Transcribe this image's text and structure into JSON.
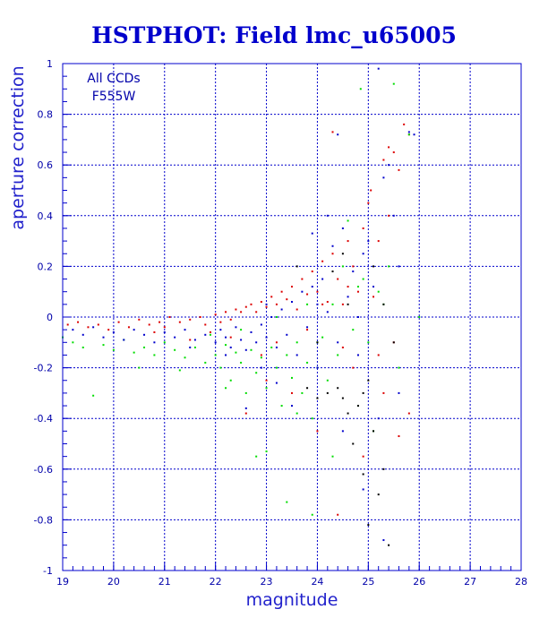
{
  "chart_data": {
    "type": "scatter",
    "title": "HSTPHOT: Field lmc_u65005",
    "xlabel": "magnitude",
    "ylabel": "aperture correction",
    "xlim": [
      19,
      28
    ],
    "ylim": [
      -1,
      1
    ],
    "xticks": [
      19,
      20,
      21,
      22,
      23,
      24,
      25,
      26,
      27,
      28
    ],
    "yticks": [
      -1,
      -0.8,
      -0.6,
      -0.4,
      -0.2,
      0,
      0.2,
      0.4,
      0.6,
      0.8,
      1
    ],
    "xtick_labels": [
      "19",
      "20",
      "21",
      "22",
      "23",
      "24",
      "25",
      "26",
      "27",
      "28"
    ],
    "ytick_labels": [
      "-1",
      "-0.8",
      "-0.6",
      "-0.4",
      "-0.2",
      "0",
      "0.2",
      "0.4",
      "0.6",
      "0.8",
      "1"
    ],
    "grid": true,
    "annotations": [
      "All CCDs",
      "F555W"
    ],
    "colors": {
      "axes": "#0000cc",
      "grid": "#0000cc",
      "red_points": "#dd0000",
      "green_points": "#00dd00",
      "blue_points": "#0000cc",
      "black_points": "#000000"
    },
    "series": [
      {
        "color": "#dd0000",
        "points": [
          [
            19.1,
            -0.03
          ],
          [
            19.3,
            -0.02
          ],
          [
            19.5,
            -0.04
          ],
          [
            19.7,
            -0.03
          ],
          [
            19.9,
            -0.05
          ],
          [
            20.1,
            -0.02
          ],
          [
            20.3,
            -0.04
          ],
          [
            20.5,
            -0.01
          ],
          [
            20.7,
            -0.03
          ],
          [
            20.9,
            -0.02
          ],
          [
            21.1,
            0.0
          ],
          [
            21.3,
            -0.02
          ],
          [
            21.5,
            -0.01
          ],
          [
            21.7,
            0.0
          ],
          [
            21.8,
            -0.03
          ],
          [
            21.9,
            -0.06
          ],
          [
            22.0,
            0.01
          ],
          [
            22.1,
            -0.02
          ],
          [
            22.2,
            0.02
          ],
          [
            22.3,
            -0.01
          ],
          [
            22.4,
            0.03
          ],
          [
            22.5,
            0.02
          ],
          [
            22.6,
            0.04
          ],
          [
            22.7,
            0.05
          ],
          [
            22.8,
            0.02
          ],
          [
            22.9,
            0.06
          ],
          [
            23.0,
            0.04
          ],
          [
            23.1,
            0.08
          ],
          [
            23.2,
            0.05
          ],
          [
            23.3,
            0.1
          ],
          [
            23.4,
            0.07
          ],
          [
            23.5,
            0.12
          ],
          [
            23.6,
            0.03
          ],
          [
            23.7,
            0.15
          ],
          [
            23.8,
            0.09
          ],
          [
            23.9,
            0.18
          ],
          [
            24.0,
            0.1
          ],
          [
            24.1,
            0.22
          ],
          [
            24.2,
            0.06
          ],
          [
            24.3,
            0.25
          ],
          [
            24.4,
            0.15
          ],
          [
            24.5,
            0.05
          ],
          [
            24.6,
            0.3
          ],
          [
            24.7,
            0.2
          ],
          [
            24.8,
            0.1
          ],
          [
            24.9,
            0.35
          ],
          [
            25.0,
            0.45
          ],
          [
            25.05,
            0.5
          ],
          [
            25.1,
            0.08
          ],
          [
            25.2,
            0.3
          ],
          [
            25.3,
            0.62
          ],
          [
            25.4,
            0.4
          ],
          [
            25.5,
            0.65
          ],
          [
            25.6,
            0.58
          ],
          [
            25.7,
            0.76
          ],
          [
            25.8,
            0.72
          ],
          [
            24.3,
            0.73
          ],
          [
            25.4,
            0.67
          ],
          [
            23.5,
            -0.3
          ],
          [
            24.0,
            -0.45
          ],
          [
            24.4,
            -0.78
          ],
          [
            24.9,
            -0.55
          ],
          [
            25.3,
            -0.3
          ],
          [
            25.6,
            -0.47
          ],
          [
            25.8,
            -0.38
          ],
          [
            22.6,
            -0.38
          ],
          [
            23.0,
            -0.25
          ],
          [
            24.5,
            -0.12
          ],
          [
            25.2,
            -0.15
          ],
          [
            23.8,
            -0.05
          ],
          [
            24.6,
            0.12
          ],
          [
            22.3,
            -0.08
          ],
          [
            21.5,
            -0.09
          ],
          [
            20.8,
            -0.06
          ],
          [
            24.1,
            0.05
          ],
          [
            23.2,
            -0.1
          ],
          [
            22.9,
            -0.15
          ],
          [
            24.7,
            -0.2
          ],
          [
            25.5,
            -0.1
          ],
          [
            21.0,
            -0.04
          ]
        ]
      },
      {
        "color": "#00dd00",
        "points": [
          [
            19.0,
            -0.08
          ],
          [
            19.2,
            -0.1
          ],
          [
            19.4,
            -0.12
          ],
          [
            19.6,
            -0.31
          ],
          [
            19.8,
            -0.11
          ],
          [
            20.0,
            -0.13
          ],
          [
            20.2,
            -0.09
          ],
          [
            20.4,
            -0.14
          ],
          [
            20.6,
            -0.12
          ],
          [
            20.8,
            -0.15
          ],
          [
            21.0,
            -0.1
          ],
          [
            21.2,
            -0.13
          ],
          [
            21.4,
            -0.16
          ],
          [
            21.6,
            -0.12
          ],
          [
            21.8,
            -0.18
          ],
          [
            22.0,
            -0.15
          ],
          [
            22.1,
            -0.2
          ],
          [
            22.2,
            -0.11
          ],
          [
            22.3,
            -0.25
          ],
          [
            22.4,
            -0.14
          ],
          [
            22.5,
            -0.18
          ],
          [
            22.6,
            -0.3
          ],
          [
            22.7,
            -0.13
          ],
          [
            22.8,
            -0.22
          ],
          [
            22.9,
            -0.16
          ],
          [
            23.0,
            -0.28
          ],
          [
            23.1,
            -0.12
          ],
          [
            23.2,
            -0.2
          ],
          [
            23.3,
            -0.35
          ],
          [
            23.4,
            -0.15
          ],
          [
            23.5,
            -0.24
          ],
          [
            23.6,
            -0.1
          ],
          [
            23.7,
            -0.3
          ],
          [
            23.8,
            -0.18
          ],
          [
            23.9,
            -0.4
          ],
          [
            24.0,
            -0.2
          ],
          [
            24.1,
            -0.08
          ],
          [
            24.2,
            -0.25
          ],
          [
            24.3,
            0.05
          ],
          [
            24.4,
            -0.15
          ],
          [
            24.5,
            0.2
          ],
          [
            24.6,
            0.38
          ],
          [
            24.7,
            -0.05
          ],
          [
            24.8,
            0.12
          ],
          [
            24.85,
            0.9
          ],
          [
            25.0,
            -0.1
          ],
          [
            25.2,
            0.1
          ],
          [
            25.4,
            0.2
          ],
          [
            25.5,
            0.92
          ],
          [
            25.8,
            0.72
          ],
          [
            23.0,
            -0.53
          ],
          [
            22.8,
            -0.55
          ],
          [
            23.9,
            -0.78
          ],
          [
            23.4,
            -0.73
          ],
          [
            24.3,
            -0.55
          ],
          [
            25.1,
            -0.45
          ],
          [
            20.5,
            -0.2
          ],
          [
            21.3,
            -0.21
          ],
          [
            22.2,
            -0.28
          ],
          [
            23.6,
            -0.38
          ],
          [
            24.8,
            -0.35
          ],
          [
            25.6,
            -0.2
          ],
          [
            23.2,
            0.0
          ],
          [
            22.5,
            -0.05
          ],
          [
            21.9,
            -0.07
          ],
          [
            24.0,
            -0.1
          ],
          [
            23.8,
            0.05
          ],
          [
            24.9,
            0.15
          ],
          [
            25.3,
            0.05
          ],
          [
            26.0,
            0.0
          ]
        ]
      },
      {
        "color": "#0000cc",
        "points": [
          [
            19.2,
            -0.05
          ],
          [
            19.4,
            -0.07
          ],
          [
            19.6,
            -0.04
          ],
          [
            19.8,
            -0.08
          ],
          [
            20.0,
            -0.06
          ],
          [
            20.2,
            -0.09
          ],
          [
            20.4,
            -0.05
          ],
          [
            20.6,
            -0.07
          ],
          [
            20.8,
            -0.1
          ],
          [
            21.0,
            -0.06
          ],
          [
            21.2,
            -0.08
          ],
          [
            21.4,
            -0.05
          ],
          [
            21.6,
            -0.09
          ],
          [
            21.8,
            -0.07
          ],
          [
            22.0,
            -0.1
          ],
          [
            22.1,
            -0.05
          ],
          [
            22.2,
            -0.08
          ],
          [
            22.3,
            -0.12
          ],
          [
            22.4,
            -0.04
          ],
          [
            22.5,
            -0.09
          ],
          [
            22.6,
            -0.13
          ],
          [
            22.7,
            -0.06
          ],
          [
            22.8,
            -0.1
          ],
          [
            22.9,
            -0.03
          ],
          [
            23.0,
            -0.08
          ],
          [
            23.1,
            0.0
          ],
          [
            23.2,
            -0.12
          ],
          [
            23.3,
            0.03
          ],
          [
            23.4,
            -0.07
          ],
          [
            23.5,
            0.06
          ],
          [
            23.6,
            -0.15
          ],
          [
            23.7,
            0.1
          ],
          [
            23.8,
            -0.04
          ],
          [
            23.9,
            0.12
          ],
          [
            24.0,
            -0.2
          ],
          [
            24.1,
            0.15
          ],
          [
            24.2,
            0.02
          ],
          [
            24.3,
            0.28
          ],
          [
            24.4,
            -0.1
          ],
          [
            24.5,
            0.35
          ],
          [
            24.6,
            0.08
          ],
          [
            24.7,
            0.18
          ],
          [
            24.8,
            0.0
          ],
          [
            24.9,
            0.25
          ],
          [
            25.0,
            0.3
          ],
          [
            25.1,
            0.12
          ],
          [
            25.2,
            0.98
          ],
          [
            25.3,
            0.55
          ],
          [
            25.4,
            0.6
          ],
          [
            25.5,
            0.4
          ],
          [
            25.6,
            0.2
          ],
          [
            25.8,
            0.73
          ],
          [
            25.9,
            0.72
          ],
          [
            24.4,
            0.72
          ],
          [
            23.9,
            0.33
          ],
          [
            24.2,
            0.4
          ],
          [
            22.6,
            -0.36
          ],
          [
            23.2,
            -0.26
          ],
          [
            24.5,
            -0.45
          ],
          [
            24.9,
            -0.68
          ],
          [
            25.3,
            -0.88
          ],
          [
            25.6,
            -0.3
          ],
          [
            23.5,
            -0.35
          ],
          [
            22.9,
            -0.2
          ],
          [
            24.8,
            -0.15
          ],
          [
            25.2,
            -0.4
          ],
          [
            23.0,
            0.05
          ],
          [
            24.0,
            0.05
          ],
          [
            22.2,
            -0.15
          ],
          [
            21.5,
            -0.12
          ]
        ]
      },
      {
        "color": "#000000",
        "points": [
          [
            24.2,
            -0.3
          ],
          [
            24.4,
            -0.28
          ],
          [
            24.5,
            -0.32
          ],
          [
            24.6,
            -0.38
          ],
          [
            24.8,
            -0.35
          ],
          [
            24.9,
            -0.3
          ],
          [
            25.0,
            -0.25
          ],
          [
            25.1,
            -0.45
          ],
          [
            25.3,
            -0.6
          ],
          [
            25.2,
            -0.7
          ],
          [
            24.7,
            -0.5
          ],
          [
            24.9,
            -0.62
          ],
          [
            25.0,
            -0.82
          ],
          [
            25.4,
            -0.9
          ],
          [
            24.0,
            -0.32
          ],
          [
            23.8,
            -0.28
          ],
          [
            24.3,
            0.18
          ],
          [
            24.6,
            0.05
          ],
          [
            25.1,
            0.2
          ],
          [
            25.5,
            -0.1
          ],
          [
            24.0,
            -0.1
          ],
          [
            23.6,
            0.2
          ],
          [
            24.5,
            0.25
          ],
          [
            25.3,
            0.05
          ]
        ]
      }
    ]
  }
}
